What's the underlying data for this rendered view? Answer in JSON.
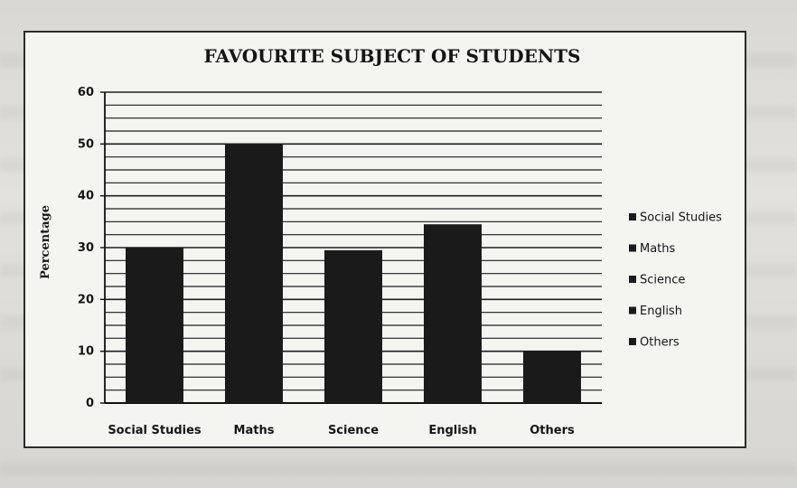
{
  "chart_data": {
    "type": "bar",
    "title": "FAVOURITE SUBJECT OF STUDENTS",
    "ylabel": "Percentage",
    "xlabel": "",
    "categories": [
      "Social Studies",
      "Maths",
      "Science",
      "English",
      "Others"
    ],
    "values": [
      30,
      50,
      29.5,
      34.5,
      10
    ],
    "ylim": [
      0,
      60
    ],
    "yticks": [
      "0",
      "10",
      "20",
      "30",
      "40",
      "50",
      "60"
    ],
    "grid": true,
    "legend_position": "right",
    "legend": [
      "Social Studies",
      "Maths",
      "Science",
      "English",
      "Others"
    ],
    "bar_color": "#1a1a1a"
  }
}
